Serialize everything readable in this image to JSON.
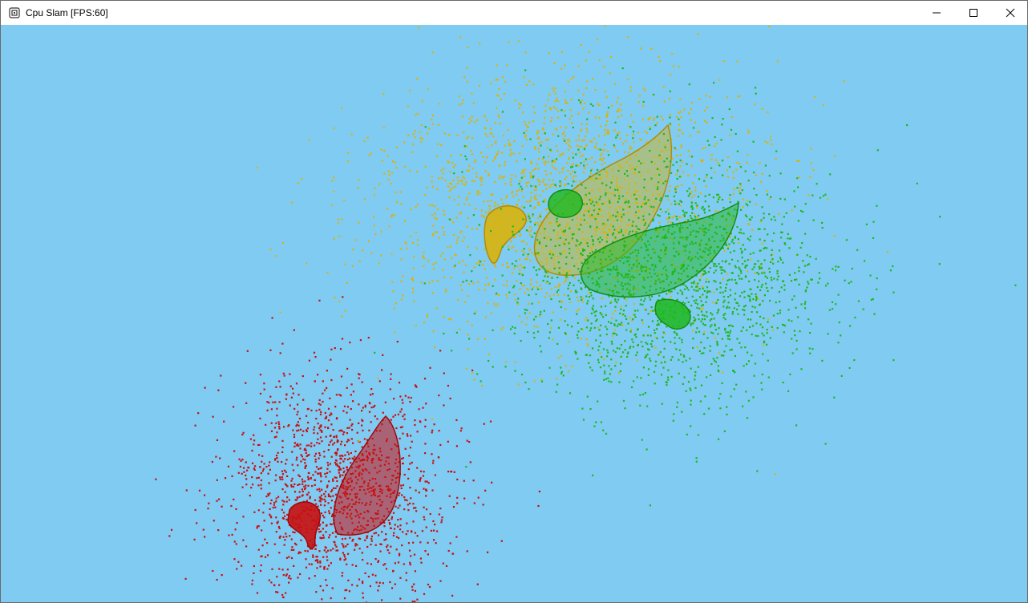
{
  "window": {
    "title": "Cpu Slam [FPS:60]",
    "icons": {
      "app": "app-window-icon",
      "minimize": "minimize-icon",
      "maximize": "maximize-icon",
      "close": "close-icon"
    }
  },
  "scene": {
    "background_color": "#80cbf2",
    "point_clouds": [
      {
        "name": "red",
        "color": "#c81010",
        "outline_color": "#a00808"
      },
      {
        "name": "yellow",
        "color": "#d8b40c",
        "outline_color": "#b08c06"
      },
      {
        "name": "green",
        "color": "#1fb81f",
        "outline_color": "#139013"
      }
    ]
  }
}
